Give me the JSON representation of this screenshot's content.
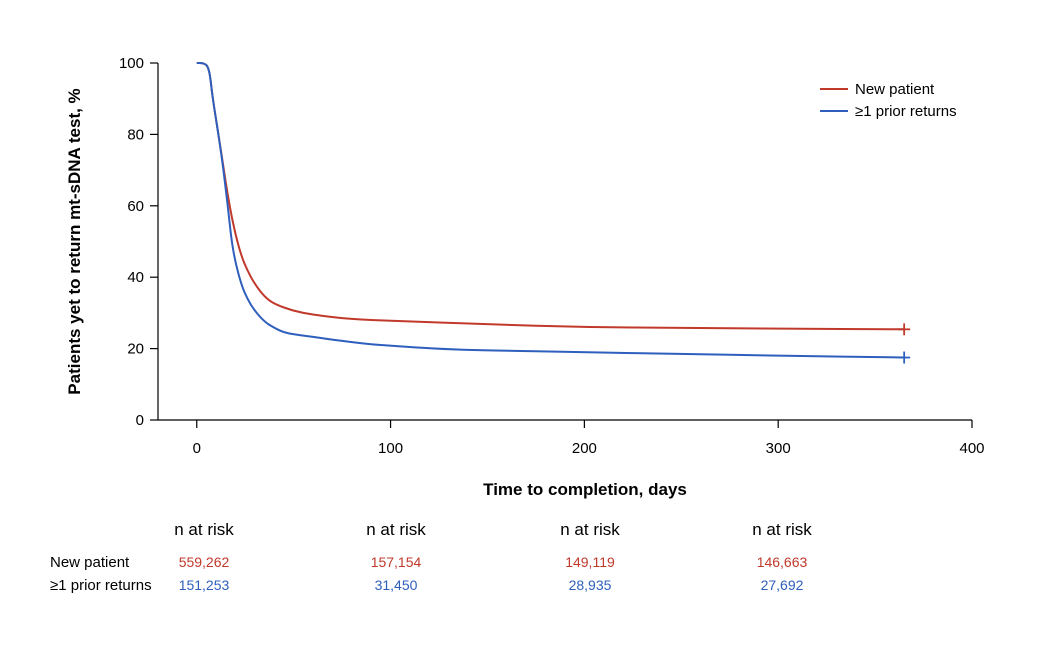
{
  "chart_data": {
    "type": "line",
    "title": "",
    "xlabel": "Time to completion, days",
    "ylabel": "Patients yet to return mt-sDNA test, %",
    "xlim": [
      -20,
      400
    ],
    "ylim": [
      0,
      100
    ],
    "x_ticks": [
      0,
      100,
      200,
      300,
      400
    ],
    "y_ticks": [
      0,
      20,
      40,
      60,
      80,
      100
    ],
    "grid": false,
    "legend_position": "top-right",
    "series": [
      {
        "name": "New patient",
        "color": "#c0392b",
        "censor_marker_at_end": true,
        "points": [
          [
            0,
            100
          ],
          [
            3,
            100
          ],
          [
            5,
            99.5
          ],
          [
            6,
            98.5
          ],
          [
            7,
            96
          ],
          [
            8,
            91
          ],
          [
            10,
            84
          ],
          [
            12,
            77
          ],
          [
            14,
            70
          ],
          [
            16,
            63
          ],
          [
            18,
            57
          ],
          [
            20,
            52
          ],
          [
            23,
            46
          ],
          [
            26,
            42
          ],
          [
            30,
            38
          ],
          [
            35,
            34.5
          ],
          [
            40,
            32.5
          ],
          [
            50,
            30.5
          ],
          [
            60,
            29.5
          ],
          [
            70,
            28.8
          ],
          [
            80,
            28.3
          ],
          [
            90,
            28
          ],
          [
            100,
            27.8
          ],
          [
            150,
            26.8
          ],
          [
            200,
            26
          ],
          [
            250,
            25.8
          ],
          [
            300,
            25.6
          ],
          [
            365,
            25.4
          ]
        ]
      },
      {
        "name": "≥1 prior returns",
        "color": "#2e5fbd",
        "censor_marker_at_end": true,
        "points": [
          [
            0,
            100
          ],
          [
            3,
            100
          ],
          [
            5,
            99.5
          ],
          [
            6,
            98.5
          ],
          [
            7,
            96
          ],
          [
            8,
            91
          ],
          [
            10,
            84
          ],
          [
            12,
            77
          ],
          [
            14,
            69
          ],
          [
            16,
            60
          ],
          [
            18,
            50
          ],
          [
            20,
            44
          ],
          [
            23,
            38
          ],
          [
            26,
            34
          ],
          [
            30,
            30.5
          ],
          [
            35,
            27.5
          ],
          [
            40,
            25.8
          ],
          [
            45,
            24.5
          ],
          [
            50,
            24
          ],
          [
            60,
            23.3
          ],
          [
            70,
            22.5
          ],
          [
            80,
            21.8
          ],
          [
            90,
            21.2
          ],
          [
            100,
            20.8
          ],
          [
            125,
            19.9
          ],
          [
            150,
            19.5
          ],
          [
            200,
            19
          ],
          [
            250,
            18.5
          ],
          [
            300,
            18
          ],
          [
            365,
            17.5
          ]
        ]
      }
    ]
  },
  "risk_table": {
    "header": "n at risk",
    "columns": [
      {
        "header": "n at risk",
        "values": [
          "559,262",
          "151,253"
        ]
      },
      {
        "header": "n at risk",
        "values": [
          "157,154",
          "31,450"
        ]
      },
      {
        "header": "n at risk",
        "values": [
          "149,119",
          "28,935"
        ]
      },
      {
        "header": "n at risk",
        "values": [
          "146,663",
          "27,692"
        ]
      }
    ],
    "rows": [
      {
        "label": "New patient",
        "color": "#c0392b"
      },
      {
        "label": "≥1 prior returns",
        "color": "#2e5fbd"
      }
    ]
  }
}
